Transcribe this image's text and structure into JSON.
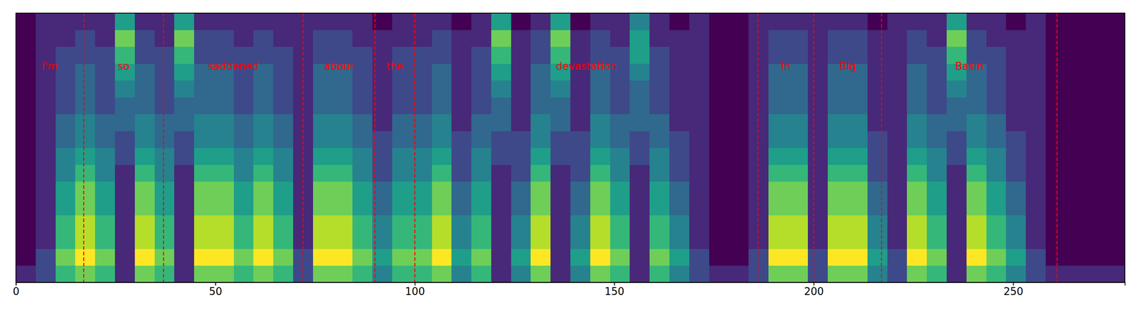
{
  "chart_data": {
    "type": "heatmap",
    "xlim": [
      0,
      278
    ],
    "xticks": [
      0,
      50,
      100,
      150,
      200,
      250
    ],
    "tick_labels": "x",
    "zlim": [
      0,
      9
    ],
    "annotations": [
      {
        "text": "I'm",
        "start": 0,
        "end": 17
      },
      {
        "text": "so",
        "start": 17,
        "end": 37
      },
      {
        "text": "saddened",
        "start": 37,
        "end": 72
      },
      {
        "text": "about",
        "start": 72,
        "end": 90
      },
      {
        "text": "the",
        "start": 90,
        "end": 100
      },
      {
        "text": "devastation",
        "start": 100,
        "end": 186
      },
      {
        "text": "in",
        "start": 186,
        "end": 200
      },
      {
        "text": "Big",
        "start": 200,
        "end": 217
      },
      {
        "text": "Basin",
        "start": 217,
        "end": 261
      }
    ],
    "cells": [
      [
        1,
        0,
        0,
        0,
        0,
        0,
        0,
        0,
        0,
        0,
        0,
        0,
        0,
        0,
        0,
        0
      ],
      [
        2,
        2,
        1,
        1,
        1,
        1,
        1,
        1,
        1,
        1,
        1,
        1,
        1,
        1,
        1,
        1
      ],
      [
        6,
        7,
        6,
        6,
        5,
        5,
        4,
        4,
        3,
        3,
        2,
        2,
        2,
        2,
        1,
        1
      ],
      [
        7,
        9,
        8,
        8,
        7,
        7,
        6,
        5,
        4,
        4,
        3,
        3,
        3,
        2,
        2,
        1
      ],
      [
        6,
        7,
        6,
        6,
        5,
        5,
        4,
        4,
        3,
        3,
        2,
        2,
        2,
        2,
        1,
        1
      ],
      [
        1,
        1,
        1,
        1,
        1,
        1,
        1,
        2,
        2,
        3,
        3,
        4,
        5,
        6,
        7,
        5
      ],
      [
        7,
        9,
        8,
        8,
        7,
        7,
        6,
        5,
        4,
        4,
        3,
        3,
        3,
        2,
        2,
        1
      ],
      [
        6,
        7,
        6,
        6,
        5,
        5,
        4,
        4,
        3,
        3,
        2,
        2,
        2,
        2,
        1,
        1
      ],
      [
        1,
        1,
        1,
        1,
        1,
        1,
        1,
        2,
        2,
        3,
        3,
        4,
        5,
        6,
        7,
        5
      ],
      [
        7,
        9,
        8,
        8,
        7,
        7,
        6,
        5,
        4,
        4,
        3,
        3,
        3,
        2,
        2,
        1
      ],
      [
        7,
        9,
        8,
        8,
        7,
        7,
        6,
        5,
        4,
        4,
        3,
        3,
        3,
        2,
        2,
        1
      ],
      [
        6,
        7,
        6,
        6,
        5,
        5,
        4,
        4,
        3,
        3,
        2,
        2,
        2,
        2,
        1,
        1
      ],
      [
        7,
        9,
        8,
        8,
        7,
        7,
        6,
        5,
        4,
        4,
        3,
        3,
        3,
        2,
        2,
        1
      ],
      [
        6,
        7,
        6,
        6,
        5,
        5,
        4,
        4,
        3,
        3,
        2,
        2,
        2,
        2,
        1,
        1
      ],
      [
        2,
        2,
        1,
        1,
        1,
        1,
        1,
        1,
        1,
        1,
        1,
        1,
        1,
        1,
        1,
        1
      ],
      [
        7,
        9,
        8,
        8,
        7,
        7,
        6,
        5,
        4,
        4,
        3,
        3,
        3,
        2,
        2,
        1
      ],
      [
        7,
        9,
        8,
        8,
        7,
        7,
        6,
        5,
        4,
        4,
        3,
        3,
        3,
        2,
        2,
        1
      ],
      [
        6,
        7,
        6,
        6,
        5,
        5,
        4,
        4,
        3,
        3,
        2,
        2,
        2,
        2,
        1,
        1
      ],
      [
        4,
        5,
        4,
        4,
        3,
        3,
        2,
        2,
        2,
        1,
        1,
        1,
        1,
        1,
        1,
        0
      ],
      [
        6,
        7,
        6,
        6,
        5,
        5,
        4,
        4,
        3,
        3,
        2,
        2,
        2,
        2,
        1,
        1
      ],
      [
        6,
        7,
        6,
        6,
        5,
        5,
        4,
        4,
        3,
        3,
        2,
        2,
        2,
        2,
        1,
        1
      ],
      [
        7,
        9,
        8,
        8,
        7,
        7,
        6,
        5,
        4,
        4,
        3,
        3,
        3,
        2,
        2,
        1
      ],
      [
        4,
        5,
        4,
        4,
        3,
        3,
        2,
        2,
        2,
        1,
        1,
        1,
        1,
        1,
        1,
        0
      ],
      [
        6,
        7,
        6,
        6,
        5,
        5,
        4,
        4,
        3,
        3,
        2,
        2,
        2,
        2,
        1,
        1
      ],
      [
        1,
        1,
        1,
        1,
        1,
        1,
        1,
        2,
        2,
        3,
        3,
        4,
        5,
        6,
        7,
        5
      ],
      [
        4,
        5,
        4,
        4,
        3,
        3,
        2,
        2,
        2,
        1,
        1,
        1,
        1,
        1,
        1,
        0
      ],
      [
        7,
        9,
        8,
        8,
        7,
        7,
        6,
        5,
        4,
        4,
        3,
        3,
        3,
        2,
        2,
        1
      ],
      [
        1,
        1,
        1,
        1,
        1,
        1,
        1,
        2,
        2,
        3,
        3,
        4,
        5,
        6,
        7,
        5
      ],
      [
        4,
        5,
        4,
        4,
        3,
        3,
        2,
        2,
        2,
        1,
        1,
        1,
        1,
        1,
        1,
        0
      ],
      [
        7,
        9,
        8,
        8,
        7,
        7,
        6,
        5,
        4,
        4,
        3,
        3,
        3,
        2,
        2,
        1
      ],
      [
        6,
        7,
        6,
        6,
        5,
        5,
        4,
        4,
        3,
        3,
        2,
        2,
        2,
        2,
        1,
        1
      ],
      [
        1,
        1,
        1,
        1,
        1,
        1,
        1,
        2,
        2,
        3,
        3,
        3,
        4,
        5,
        5,
        4
      ],
      [
        6,
        7,
        6,
        6,
        5,
        5,
        4,
        4,
        3,
        3,
        2,
        2,
        2,
        2,
        1,
        1
      ],
      [
        4,
        5,
        4,
        4,
        3,
        3,
        2,
        2,
        2,
        1,
        1,
        1,
        1,
        1,
        1,
        0
      ],
      [
        2,
        2,
        1,
        1,
        1,
        1,
        1,
        1,
        1,
        1,
        1,
        1,
        1,
        1,
        1,
        1
      ],
      [
        1,
        0,
        0,
        0,
        0,
        0,
        0,
        0,
        0,
        0,
        0,
        0,
        0,
        0,
        0,
        0
      ],
      [
        1,
        0,
        0,
        0,
        0,
        0,
        0,
        0,
        0,
        0,
        0,
        0,
        0,
        0,
        0,
        0
      ],
      [
        2,
        2,
        1,
        1,
        1,
        1,
        1,
        1,
        1,
        1,
        1,
        1,
        1,
        1,
        1,
        1
      ],
      [
        7,
        9,
        8,
        8,
        7,
        7,
        6,
        5,
        4,
        4,
        3,
        3,
        3,
        2,
        2,
        1
      ],
      [
        7,
        9,
        8,
        8,
        7,
        7,
        6,
        5,
        4,
        4,
        3,
        3,
        3,
        2,
        2,
        1
      ],
      [
        2,
        2,
        1,
        1,
        1,
        1,
        1,
        1,
        1,
        1,
        1,
        1,
        1,
        1,
        1,
        1
      ],
      [
        7,
        9,
        8,
        8,
        7,
        7,
        6,
        5,
        4,
        4,
        3,
        3,
        3,
        2,
        2,
        1
      ],
      [
        7,
        9,
        8,
        8,
        7,
        7,
        6,
        5,
        4,
        4,
        3,
        3,
        3,
        2,
        2,
        1
      ],
      [
        4,
        5,
        4,
        4,
        3,
        3,
        2,
        2,
        2,
        1,
        1,
        1,
        1,
        1,
        1,
        0
      ],
      [
        2,
        2,
        1,
        1,
        1,
        1,
        1,
        1,
        1,
        1,
        1,
        1,
        1,
        1,
        1,
        1
      ],
      [
        7,
        9,
        8,
        8,
        7,
        7,
        6,
        5,
        4,
        4,
        3,
        3,
        3,
        2,
        2,
        1
      ],
      [
        6,
        7,
        6,
        6,
        5,
        5,
        4,
        4,
        3,
        3,
        2,
        2,
        2,
        2,
        1,
        1
      ],
      [
        1,
        1,
        1,
        1,
        1,
        1,
        1,
        2,
        2,
        3,
        3,
        4,
        5,
        6,
        7,
        5
      ],
      [
        7,
        9,
        8,
        8,
        7,
        7,
        6,
        5,
        4,
        4,
        3,
        3,
        3,
        2,
        2,
        1
      ],
      [
        6,
        7,
        6,
        6,
        5,
        5,
        4,
        4,
        3,
        3,
        2,
        2,
        2,
        2,
        1,
        1
      ],
      [
        4,
        5,
        4,
        4,
        3,
        3,
        2,
        2,
        2,
        1,
        1,
        1,
        1,
        1,
        1,
        0
      ],
      [
        2,
        2,
        1,
        1,
        1,
        1,
        1,
        1,
        1,
        1,
        1,
        1,
        1,
        1,
        1,
        1
      ],
      [
        1,
        0,
        0,
        0,
        0,
        0,
        0,
        0,
        0,
        0,
        0,
        0,
        0,
        0,
        0,
        0
      ],
      [
        1,
        0,
        0,
        0,
        0,
        0,
        0,
        0,
        0,
        0,
        0,
        0,
        0,
        0,
        0,
        0
      ],
      [
        1,
        0,
        0,
        0,
        0,
        0,
        0,
        0,
        0,
        0,
        0,
        0,
        0,
        0,
        0,
        0
      ],
      [
        1,
        0,
        0,
        0,
        0,
        0,
        0,
        0,
        0,
        0,
        0,
        0,
        0,
        0,
        0,
        0
      ]
    ]
  }
}
